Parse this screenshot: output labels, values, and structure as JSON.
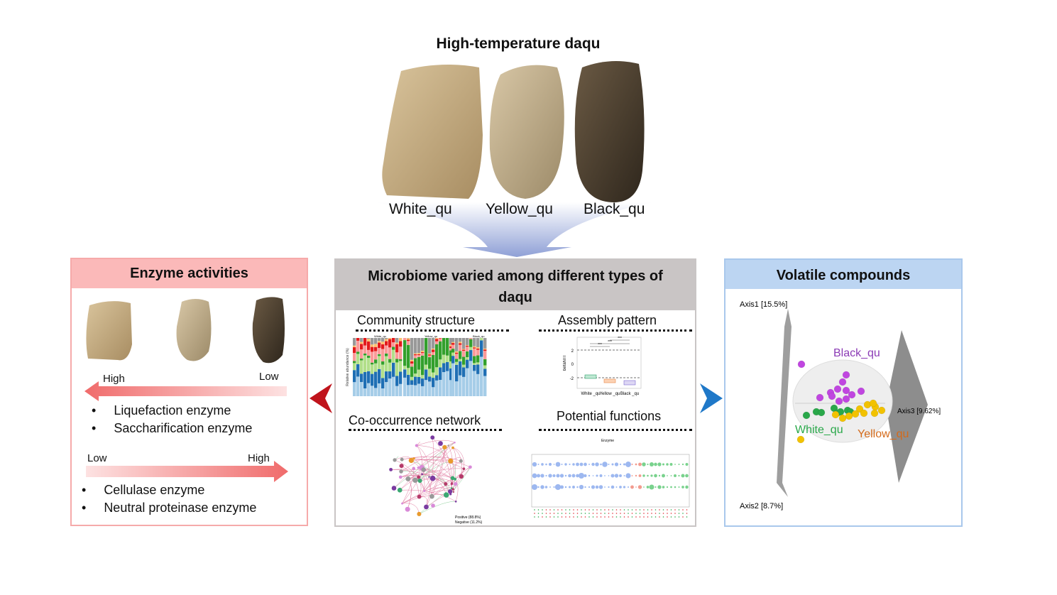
{
  "title": "High-temperature daqu",
  "samples": [
    "White_qu",
    "Yellow_qu",
    "Black_qu"
  ],
  "colors": {
    "white_qu": "#2aa84a",
    "yellow_qu": "#d46a1a",
    "black_qu": "#8b3bb5",
    "enzyme_header": "#fbb9b9",
    "microbiome_header": "#c9c5c5",
    "volatile_header": "#bcd5f2",
    "arrow_left": "#c0141c",
    "arrow_right": "#1f78c8"
  },
  "enzyme": {
    "header": "Enzyme activities",
    "arrow1": {
      "left": "High",
      "right": "Low"
    },
    "group1": [
      "Liquefaction enzyme",
      "Saccharification enzyme"
    ],
    "arrow2": {
      "left": "Low",
      "right": "High"
    },
    "group2": [
      "Cellulase enzyme",
      "Neutral proteinase enzyme"
    ]
  },
  "microbiome": {
    "header": "Microbiome varied among different types of daqu",
    "community": {
      "title": "Community structure",
      "facets": [
        "White_qu",
        "Yellow_qu",
        "Black_qu"
      ],
      "ylabel": "Relative abundance (%)",
      "yticks": [
        "100",
        "75",
        "50",
        "25",
        "0"
      ]
    },
    "assembly": {
      "title": "Assembly pattern",
      "ylabel": "betaNTI",
      "yticks": [
        "2",
        "0",
        "-2"
      ],
      "groups": [
        "White _qu",
        "Yellow _qu",
        "Black _qu"
      ],
      "sig": "***"
    },
    "network": {
      "title": "Co-occurrence network",
      "positive": "Positive (88.8%)",
      "negative": "Negative (11.2%)"
    },
    "functions": {
      "title": "Potential functions",
      "xlabel": "Enzyme"
    }
  },
  "volatile": {
    "header": "Volatile compounds",
    "axis1": "Axis1 [15.5%]",
    "axis2": "Axis2 [8.7%]",
    "axis3": "Axis3 [9.62%]",
    "labels": [
      "Black_qu",
      "White_qu",
      "Yellow_qu"
    ]
  }
}
